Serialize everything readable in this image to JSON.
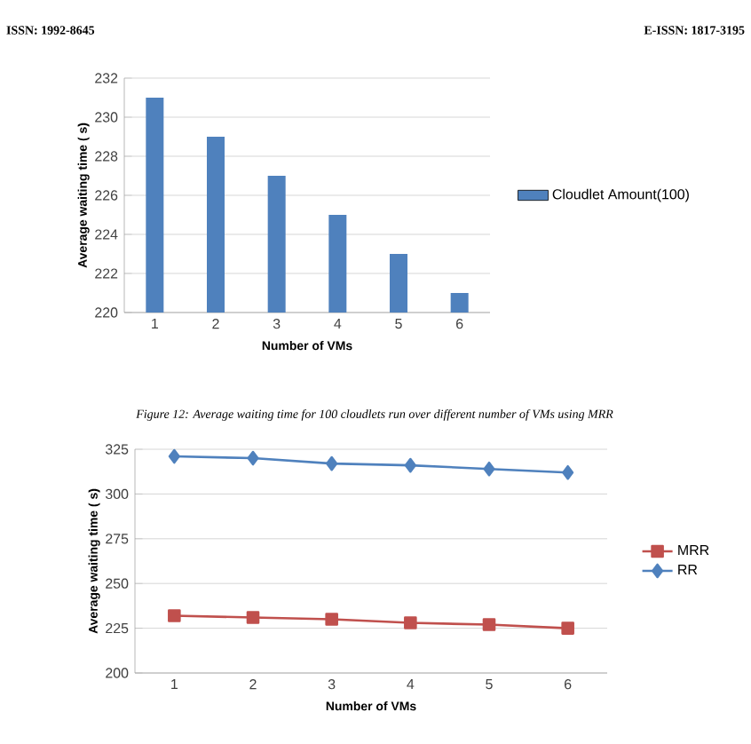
{
  "chart_data": [
    {
      "type": "bar",
      "xlabel": "Number of VMs",
      "ylabel": "Average waiting time ( s)",
      "categories": [
        "1",
        "2",
        "3",
        "4",
        "5",
        "6"
      ],
      "series": [
        {
          "name": "Cloudlet Amount(100)",
          "color": "#4f81bd",
          "values": [
            231,
            229,
            227,
            225,
            223,
            221
          ]
        }
      ],
      "ylim": [
        220,
        232
      ],
      "yticks": [
        220,
        222,
        224,
        226,
        228,
        230,
        232
      ],
      "grid": "y",
      "legend": "right",
      "annotations": [
        "ISSN: 1992-8645",
        "E-ISSN: 1817-3195",
        "Figure 12: Average waiting time for 100 cloudlets run over different number of VMs using MRR"
      ]
    },
    {
      "type": "line",
      "xlabel": "Number of VMs",
      "ylabel": "Average waiting time ( s)",
      "categories": [
        "1",
        "2",
        "3",
        "4",
        "5",
        "6"
      ],
      "series": [
        {
          "name": "MRR",
          "color": "#c0504d",
          "marker": "square",
          "values": [
            232,
            231,
            230,
            228,
            227,
            225
          ]
        },
        {
          "name": "RR",
          "color": "#4f81bd",
          "marker": "diamond",
          "values": [
            321,
            320,
            317,
            316,
            314,
            312
          ]
        }
      ],
      "ylim": [
        200,
        325
      ],
      "yticks": [
        200,
        225,
        250,
        275,
        300,
        325
      ],
      "grid": "y",
      "legend": "right"
    }
  ]
}
